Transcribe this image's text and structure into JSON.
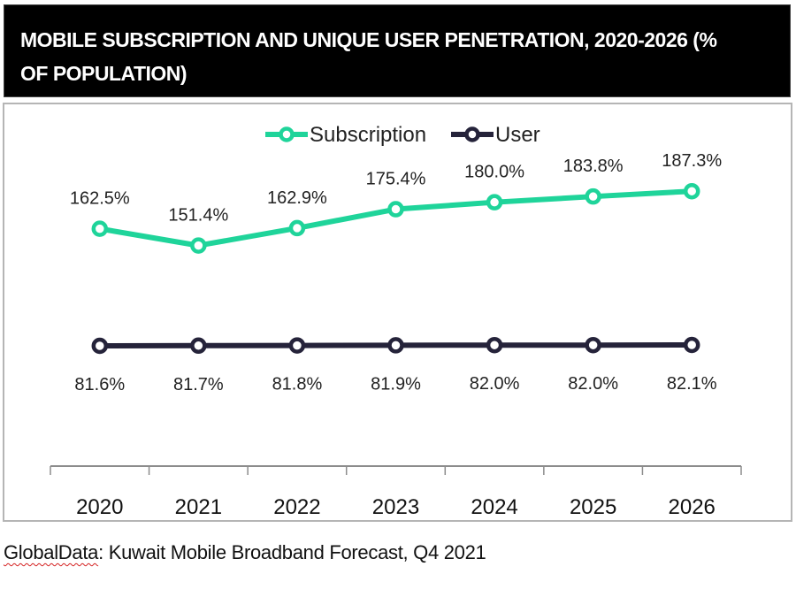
{
  "title": "MOBILE SUBSCRIPTION AND UNIQUE USER PENETRATION, 2020-2026 (% OF POPULATION)",
  "source": {
    "brand": "GlobalData",
    "rest": ": Kuwait Mobile Broadband Forecast, Q4 2021"
  },
  "colors": {
    "subscription": "#1fd49a",
    "user": "#25233a",
    "title_bg": "#000000",
    "axis": "#8c8c8c"
  },
  "chart_data": {
    "type": "line",
    "title": "MOBILE SUBSCRIPTION AND UNIQUE USER PENETRATION, 2020-2026 (% OF POPULATION)",
    "xlabel": "",
    "ylabel": "",
    "categories": [
      "2020",
      "2021",
      "2022",
      "2023",
      "2024",
      "2025",
      "2026"
    ],
    "ylim": [
      0,
      200
    ],
    "grid": false,
    "legend_position": "top-center",
    "series": [
      {
        "name": "Subscription",
        "values": [
          162.5,
          151.4,
          162.9,
          175.4,
          180.0,
          183.8,
          187.3
        ],
        "labels": [
          "162.5%",
          "151.4%",
          "162.9%",
          "175.4%",
          "180.0%",
          "183.8%",
          "187.3%"
        ],
        "label_position": "above"
      },
      {
        "name": "User",
        "values": [
          81.6,
          81.7,
          81.8,
          81.9,
          82.0,
          82.0,
          82.1
        ],
        "labels": [
          "81.6%",
          "81.7%",
          "81.8%",
          "81.9%",
          "82.0%",
          "82.0%",
          "82.1%"
        ],
        "label_position": "below"
      }
    ]
  }
}
